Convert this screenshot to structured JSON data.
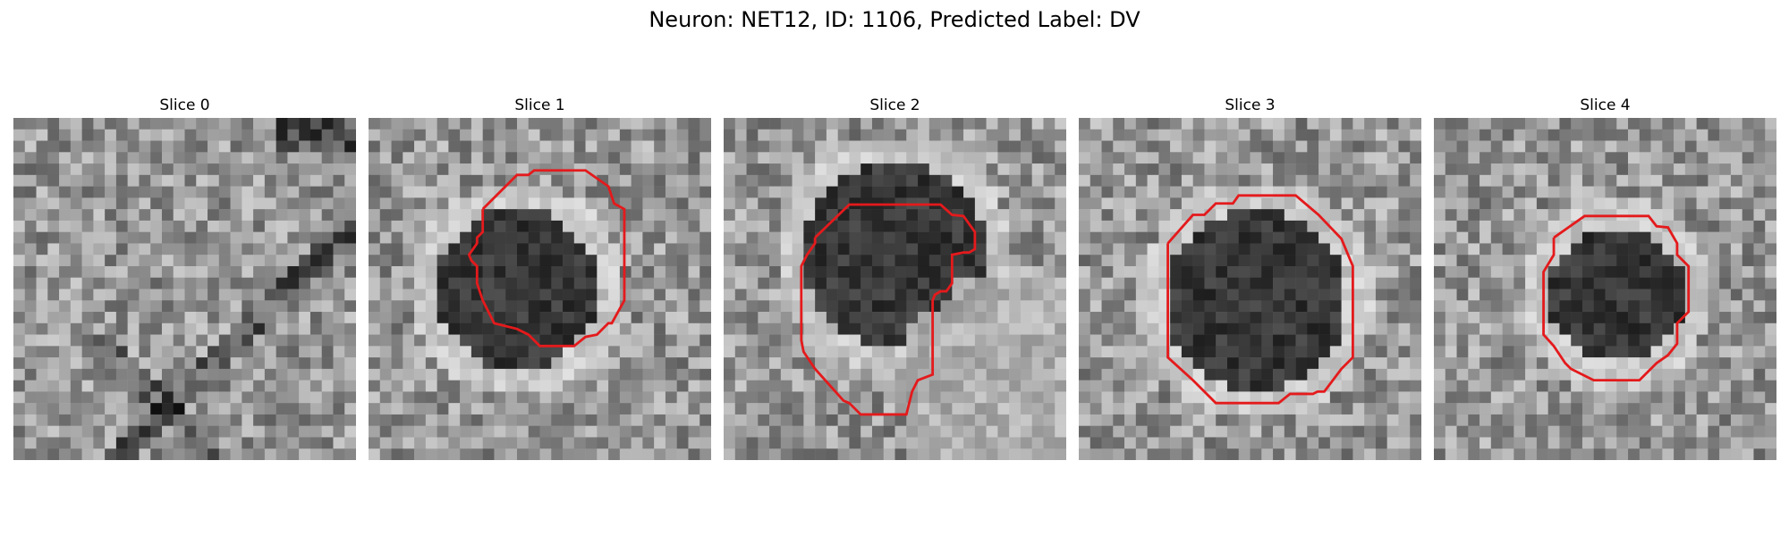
{
  "figure": {
    "title": "Neuron: NET12, ID: 1106, Predicted Label: DV"
  },
  "colors": {
    "contour": "#e41a1c",
    "background": "#ffffff"
  },
  "panels": [
    {
      "title": "Slice 0",
      "has_contour": false
    },
    {
      "title": "Slice 1",
      "has_contour": true
    },
    {
      "title": "Slice 2",
      "has_contour": true
    },
    {
      "title": "Slice 3",
      "has_contour": true
    },
    {
      "title": "Slice 4",
      "has_contour": true
    }
  ]
}
